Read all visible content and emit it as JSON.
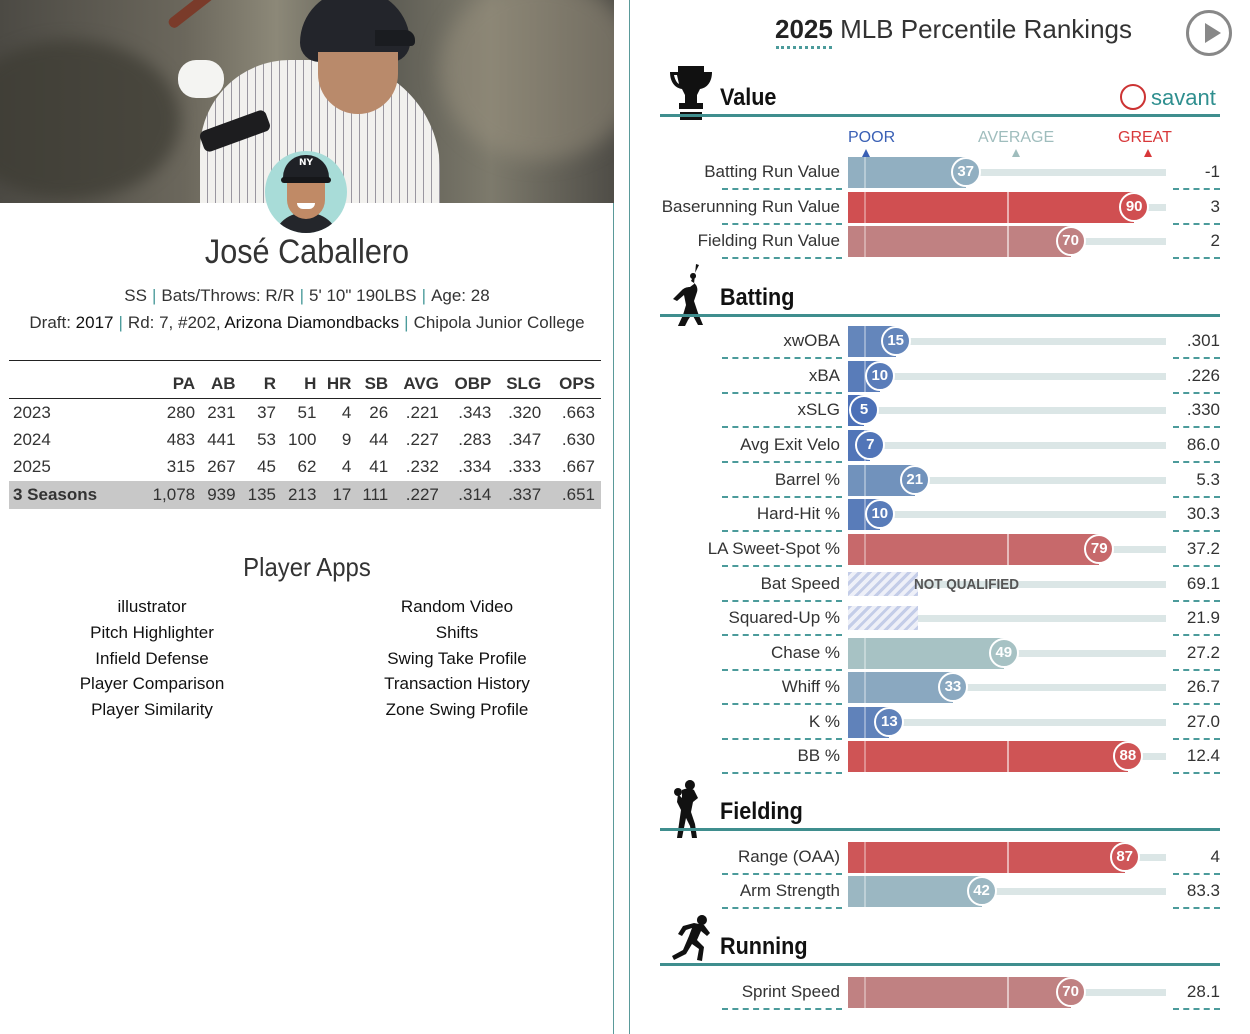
{
  "player": {
    "name": "José Caballero",
    "position": "SS",
    "bats_throws_label": "Bats/Throws:",
    "bats_throws": "R/R",
    "height_weight": "5' 10\" 190LBS",
    "age_label": "Age:",
    "age": "28",
    "draft_label": "Draft:",
    "draft_year": "2017",
    "draft_round": "Rd: 7, #202,",
    "draft_team": "Arizona Diamondbacks",
    "college": "Chipola Junior College"
  },
  "stats_table": {
    "headers": [
      "",
      "PA",
      "AB",
      "R",
      "H",
      "HR",
      "SB",
      "AVG",
      "OBP",
      "SLG",
      "OPS"
    ],
    "rows": [
      [
        "2023",
        "280",
        "231",
        "37",
        "51",
        "4",
        "26",
        ".221",
        ".343",
        ".320",
        ".663"
      ],
      [
        "2024",
        "483",
        "441",
        "53",
        "100",
        "9",
        "44",
        ".227",
        ".283",
        ".347",
        ".630"
      ],
      [
        "2025",
        "315",
        "267",
        "45",
        "62",
        "4",
        "41",
        ".232",
        ".334",
        ".333",
        ".667"
      ]
    ],
    "total": [
      "3 Seasons",
      "1,078",
      "939",
      "135",
      "213",
      "17",
      "111",
      ".227",
      ".314",
      ".337",
      ".651"
    ]
  },
  "apps": {
    "title": "Player Apps",
    "left": [
      "illustrator",
      "Pitch Highlighter",
      "Infield Defense",
      "Player Comparison",
      "Player Similarity"
    ],
    "right": [
      "Random Video",
      "Shifts",
      "Swing Take Profile",
      "Transaction History",
      "Zone Swing Profile"
    ]
  },
  "rankings": {
    "year": "2025",
    "title_rest": " MLB Percentile Rankings",
    "brand": "savant",
    "scale": {
      "poor": "POOR",
      "average": "AVERAGE",
      "great": "GREAT"
    },
    "colors": {
      "poor": "#3a60b5",
      "average": "#a9c4c4",
      "great": "#d8383a",
      "teal": "#3f8e8e"
    },
    "not_qualified": "NOT QUALIFIED",
    "sections": [
      {
        "name": "Value",
        "metrics": [
          {
            "label": "Batting Run Value",
            "pct": 37,
            "value": "-1"
          },
          {
            "label": "Baserunning Run Value",
            "pct": 90,
            "value": "3"
          },
          {
            "label": "Fielding Run Value",
            "pct": 70,
            "value": "2"
          }
        ]
      },
      {
        "name": "Batting",
        "metrics": [
          {
            "label": "xwOBA",
            "pct": 15,
            "value": ".301"
          },
          {
            "label": "xBA",
            "pct": 10,
            "value": ".226"
          },
          {
            "label": "xSLG",
            "pct": 5,
            "value": ".330"
          },
          {
            "label": "Avg Exit Velo",
            "pct": 7,
            "value": "86.0"
          },
          {
            "label": "Barrel %",
            "pct": 21,
            "value": "5.3"
          },
          {
            "label": "Hard-Hit %",
            "pct": 10,
            "value": "30.3"
          },
          {
            "label": "LA Sweet-Spot %",
            "pct": 79,
            "value": "37.2"
          },
          {
            "label": "Bat Speed",
            "pct": null,
            "value": "69.1",
            "nq_label": true
          },
          {
            "label": "Squared-Up %",
            "pct": null,
            "value": "21.9"
          },
          {
            "label": "Chase %",
            "pct": 49,
            "value": "27.2"
          },
          {
            "label": "Whiff %",
            "pct": 33,
            "value": "26.7"
          },
          {
            "label": "K %",
            "pct": 13,
            "value": "27.0"
          },
          {
            "label": "BB %",
            "pct": 88,
            "value": "12.4"
          }
        ]
      },
      {
        "name": "Fielding",
        "metrics": [
          {
            "label": "Range (OAA)",
            "pct": 87,
            "value": "4"
          },
          {
            "label": "Arm Strength",
            "pct": 42,
            "value": "83.3"
          }
        ]
      },
      {
        "name": "Running",
        "metrics": [
          {
            "label": "Sprint Speed",
            "pct": 70,
            "value": "28.1"
          }
        ]
      }
    ]
  }
}
